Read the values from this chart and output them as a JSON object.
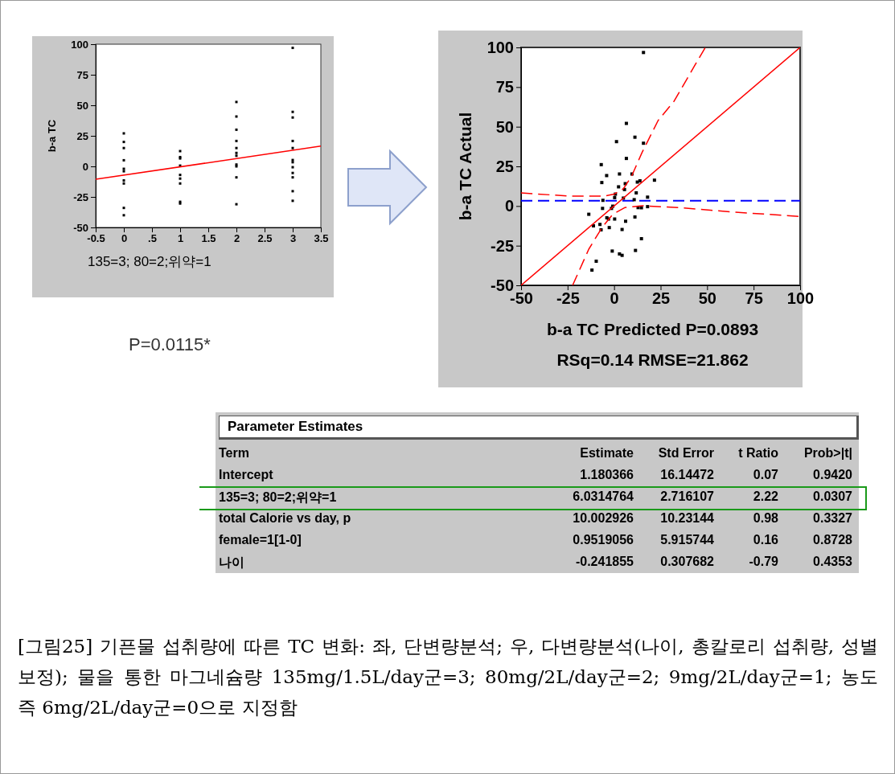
{
  "chart_data": [
    {
      "type": "scatter",
      "ylabel": "b-a TC",
      "xlabel": "135=3; 80=2;위약=1",
      "annotations": [
        "P=0.0115*"
      ],
      "xlim": [
        -0.5,
        3.5
      ],
      "xticks": [
        -0.5,
        0,
        {
          "value": 0.5,
          "label": ".5"
        },
        1,
        1.5,
        2,
        2.5,
        3,
        3.5
      ],
      "ylim": [
        -50,
        100
      ],
      "yticks": [
        -50,
        -25,
        0,
        25,
        50,
        75,
        100
      ],
      "grid": false,
      "series": [
        {
          "type": "scatter",
          "marker": "square",
          "color": "#000000",
          "x": [
            0,
            0,
            0,
            0,
            0,
            0,
            0,
            0,
            0,
            0,
            1,
            1,
            1,
            1,
            1,
            1,
            1,
            1,
            1,
            2,
            2,
            2,
            2,
            2,
            2,
            2,
            2,
            2,
            2,
            2,
            3,
            3,
            3,
            3,
            3,
            3,
            3,
            3,
            3,
            3,
            3,
            3
          ],
          "values": [
            27,
            20,
            15,
            5,
            -2,
            -4,
            -11.5,
            -14,
            -34,
            -40,
            12.5,
            7.6,
            6.5,
            0.6,
            -7,
            -10,
            -14,
            -29,
            -30.4,
            52.7,
            40.8,
            30,
            20.8,
            15,
            11,
            8.7,
            1.5,
            0,
            -9,
            -31,
            97,
            44.6,
            40,
            20.8,
            15,
            5.2,
            3.4,
            -0.7,
            -5.4,
            -9,
            -20.3,
            -28.2
          ]
        },
        {
          "type": "line",
          "color": "#ff0000",
          "line_style": "solid",
          "x": [
            -0.5,
            3.5
          ],
          "values": [
            -10.6,
            16.6
          ]
        }
      ]
    },
    {
      "type": "scatter",
      "ylabel": "b-a TC Actual",
      "xlabel": "b-a TC Predicted P=0.0893",
      "annotations": [
        "RSq=0.14 RMSE=21.862"
      ],
      "xlim": [
        -50,
        100
      ],
      "xticks": [
        -50,
        -25,
        0,
        25,
        50,
        75,
        100
      ],
      "ylim": [
        -50,
        100
      ],
      "yticks": [
        -50,
        -25,
        0,
        25,
        50,
        75,
        100
      ],
      "grid": false,
      "ref_lines": [
        {
          "axis": "y",
          "value": 3.3,
          "label": null,
          "color": "#0000ff",
          "line_style": "dashed"
        }
      ],
      "series": [
        {
          "type": "scatter",
          "marker": "square",
          "color": "#000000",
          "x": [
            15.8,
            6.6,
            1.3,
            11.2,
            15.8,
            6.6,
            -6.9,
            -4,
            2.9,
            9.6,
            -6.6,
            2.4,
            6,
            12.5,
            13.9,
            21.7,
            5.6,
            11.9,
            0.7,
            0.3,
            18,
            5,
            10.8,
            -6,
            -0.7,
            -1.4,
            12.9,
            14.7,
            18,
            -6.2,
            -13.6,
            -3.9,
            -3,
            0.3,
            11.2,
            6.2,
            -7.6,
            -11.1,
            -2.6,
            -7,
            4.3,
            14.7,
            -1,
            2.9,
            4.3,
            11.5,
            -9.6,
            -11.9
          ],
          "values": [
            96.8,
            52.1,
            40.6,
            43.4,
            39.6,
            30,
            26.1,
            19.2,
            20.2,
            20.2,
            14.8,
            12.1,
            14.1,
            15.1,
            15.9,
            16.3,
            10.4,
            8.3,
            7.5,
            5.3,
            5.6,
            5,
            4,
            3.6,
            -0.1,
            -1.5,
            -1,
            -1.1,
            -0.4,
            -1.5,
            -5.2,
            -7.4,
            -8.2,
            -8.2,
            -6.9,
            -9.6,
            -11.6,
            -12.5,
            -13.6,
            -15,
            -14.8,
            -20.6,
            -28.4,
            -30.2,
            -31.1,
            -28,
            -34.8,
            -40.4
          ]
        },
        {
          "type": "line",
          "color": "#ff0000",
          "line_style": "solid",
          "x": [
            -50,
            100
          ],
          "values": [
            -50,
            100
          ]
        },
        {
          "type": "line",
          "color": "#ff0000",
          "line_style": "dashed",
          "x": [
            -50,
            -25.1,
            -5,
            0,
            5,
            9.3,
            15,
            23.7,
            32.3,
            43.8,
            48.9
          ],
          "values": [
            8.3,
            6.3,
            6.3,
            7.5,
            10.9,
            18.5,
            33.7,
            54,
            66.2,
            89.5,
            99.7
          ]
        },
        {
          "type": "line",
          "color": "#ff0000",
          "line_style": "dashed",
          "x": [
            -22.3,
            -13.6,
            -6.5,
            -0.7,
            5.7,
            15.1,
            35.2,
            63.9,
            99.1
          ],
          "values": [
            -50,
            -27.2,
            -13.6,
            -5.2,
            -1,
            0.2,
            -1,
            -3.8,
            -6.5
          ]
        }
      ]
    },
    {
      "type": "other",
      "title": "Parameter Estimates",
      "annotations": [
        "Term",
        "Estimate",
        "Std Error",
        "t Ratio",
        "Prob>|t|",
        "Intercept",
        "1.180366",
        "16.14472",
        "0.07",
        "0.9420",
        "135=3; 80=2;위약=1",
        "6.0314764",
        "2.716107",
        "2.22",
        "0.0307",
        "total Calorie vs day, p",
        "10.002926",
        "10.23144",
        "0.98",
        "0.3327",
        "female=1[1-0]",
        "0.9519056",
        "5.915744",
        "0.16",
        "0.8728",
        "나이",
        "-0.241855",
        "0.307682",
        "-0.79",
        "0.4353"
      ]
    },
    {
      "type": "other",
      "annotations": [
        "[그림25] 기픈물 섭취량에 따른 TC 변화: 좌, 단변량분석; 우, 다변량분석(나이, 총칼로리 섭취량, 성별 보정); 물을 통한 마그네슘량 135mg/1.5L/day군=3; 80mg/2L/day군=2; 9mg/2L/day군=1; 농도 즉 6mg/2L/day군=0으로 지정함"
      ]
    }
  ]
}
